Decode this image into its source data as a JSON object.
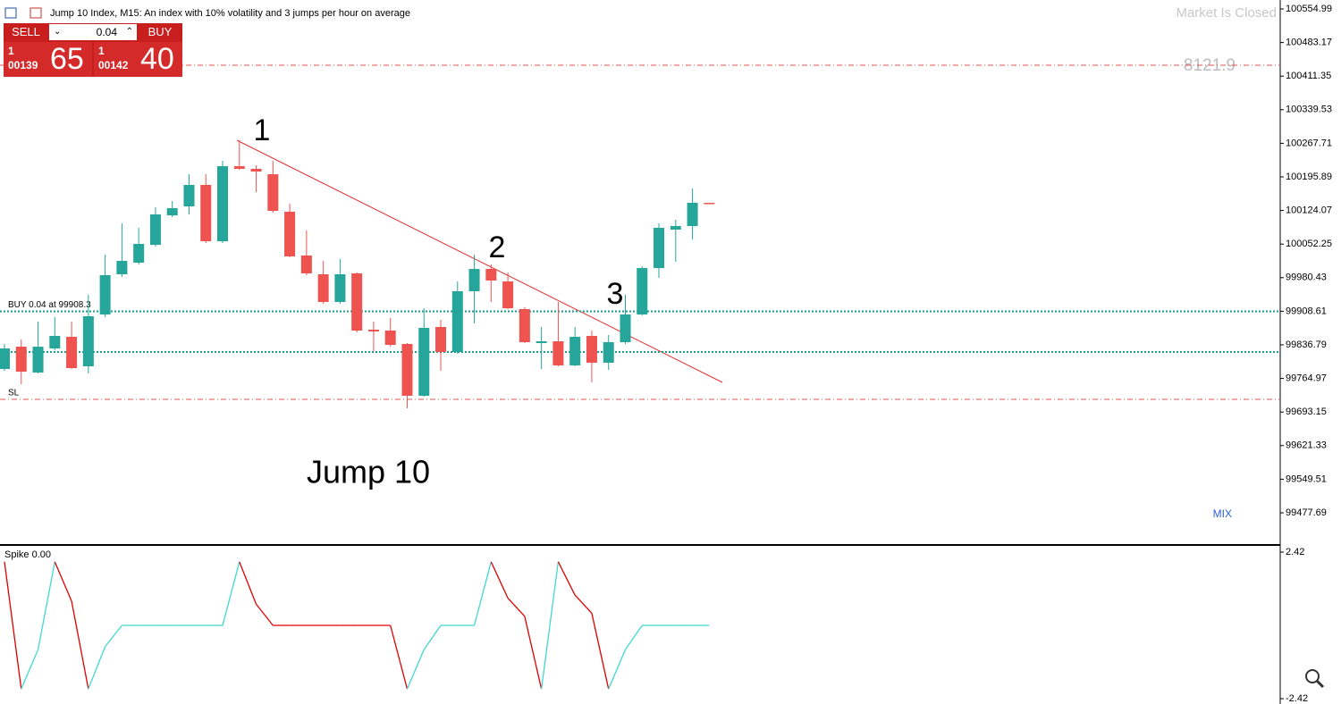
{
  "header": {
    "title": "Jump 10 Index, M15:  An index with 10% volatility and 3 jumps per hour on average",
    "status": "Market Is Closed",
    "counter": "8121.9",
    "mix": "MIX"
  },
  "trade_panel": {
    "sell": "SELL",
    "buy": "BUY",
    "volume": "0.04",
    "sell_price": {
      "lead": "1",
      "small": "00139",
      "big": "65"
    },
    "buy_price": {
      "lead": "1",
      "small": "00142",
      "big": "40"
    }
  },
  "annotations": {
    "labels": [
      "1",
      "2",
      "3"
    ],
    "watermark": "Jump 10"
  },
  "chart_data": [
    {
      "type": "candlestick",
      "open": [
        99785.2,
        99832.9,
        99777.6,
        99829.1,
        99854.0,
        99790.9,
        99901.7,
        99987.7,
        100012.5,
        100050.7,
        100113.7,
        100132.8,
        100178.7,
        100058.3,
        100218.8,
        100213.1,
        100201.6,
        100121.4,
        100027.8,
        99987.7,
        99928.5,
        99989.6,
        99869.2,
        99867.3,
        99838.7,
        99727.9,
        99875.0,
        99821.5,
        99951.4,
        99999.1,
        99972.4,
        99913.2,
        99840.6,
        99844.4,
        99792.8,
        99855.9,
        99798.6,
        99842.5,
        99901.7,
        100001.0,
        100083.2,
        100090.8,
        100140.5
      ],
      "high": [
        99838.7,
        99848.2,
        99886.4,
        99896.0,
        99886.4,
        99943.7,
        100029.7,
        100096.6,
        100087.0,
        100130.9,
        100144.3,
        100201.6,
        100201.6,
        100230.3,
        100274.2,
        100220.7,
        100230.3,
        100138.6,
        100081.3,
        100016.3,
        100020.1,
        99991.5,
        99886.4,
        99894.1,
        99840.6,
        99915.1,
        99890.2,
        99972.4,
        100029.7,
        100008.7,
        99991.5,
        99917.0,
        99875.0,
        99928.5,
        99875.0,
        99867.3,
        99857.8,
        99943.7,
        100004.9,
        100096.6,
        100104.2,
        100171.0,
        100140.5
      ],
      "low": [
        99781.4,
        99752.7,
        99775.6,
        99825.3,
        99785.2,
        99775.6,
        99896.0,
        99981.9,
        100008.7,
        100046.9,
        100109.9,
        100115.7,
        100054.5,
        100054.5,
        100211.2,
        100163.4,
        100119.5,
        100024.0,
        99985.8,
        99924.6,
        99924.6,
        99863.5,
        99823.4,
        99832.9,
        99701.1,
        99726.0,
        99781.4,
        99817.7,
        99882.6,
        99928.5,
        99913.2,
        99840.6,
        99785.2,
        99790.9,
        99790.9,
        99756.5,
        99783.3,
        99838.7,
        99899.8,
        99980.0,
        100014.4,
        100062.2,
        100138.6
      ],
      "close": [
        99829.1,
        99779.5,
        99832.9,
        99855.9,
        99787.1,
        99897.9,
        99985.8,
        100016.3,
        100052.6,
        100115.7,
        100129.0,
        100178.7,
        100058.3,
        100218.8,
        100213.1,
        100207.3,
        100123.3,
        100025.9,
        99989.6,
        99928.5,
        99987.7,
        99867.3,
        99865.4,
        99836.8,
        99727.9,
        99873.1,
        99821.5,
        99951.4,
        99999.1,
        99974.3,
        99915.1,
        99842.5,
        99844.4,
        99792.8,
        99854.0,
        99798.6,
        99842.5,
        99901.7,
        100001.0,
        100087.0,
        100090.8,
        100140.5,
        100138.6
      ],
      "up_color": "#26a69a",
      "down_color": "#ef5350",
      "ylim": [
        99408.9,
        100574.1
      ],
      "yticks": [
        100554.99,
        100483.17,
        100411.35,
        100339.53,
        100267.71,
        100195.89,
        100124.07,
        100052.25,
        99980.43,
        99908.61,
        99836.79,
        99764.97,
        99693.15,
        99621.33,
        99549.51,
        99477.69
      ],
      "levels": [
        {
          "label": "BUY 0.04 at 99908.3",
          "value": 99908.3,
          "color": "#1a9a8a"
        },
        {
          "value": 99821.5,
          "color": "#1a9a8a"
        },
        {
          "label": "SL",
          "value": 99720.2,
          "color": "#e05050"
        },
        {
          "value": 100434.6,
          "color": "#e05050"
        }
      ]
    },
    {
      "type": "line",
      "title": "Spike 0.00",
      "values": [
        2.1,
        -2.1,
        -0.8,
        2.1,
        0.8,
        -2.1,
        -0.7,
        0,
        0,
        0,
        0,
        0,
        0,
        0,
        2.1,
        0.7,
        0,
        0,
        0,
        0,
        0,
        0,
        0,
        0,
        -2.1,
        -0.8,
        0,
        0,
        0,
        2.1,
        0.9,
        0.3,
        -2.1,
        2.1,
        1.0,
        0.4,
        -2.1,
        -0.8,
        0,
        0,
        0,
        0,
        0
      ],
      "up_color": "#40d8d0",
      "down_color": "#e00000",
      "ylim": [
        -2.42,
        2.42
      ],
      "yticks": [
        2.42,
        -2.42
      ]
    }
  ]
}
